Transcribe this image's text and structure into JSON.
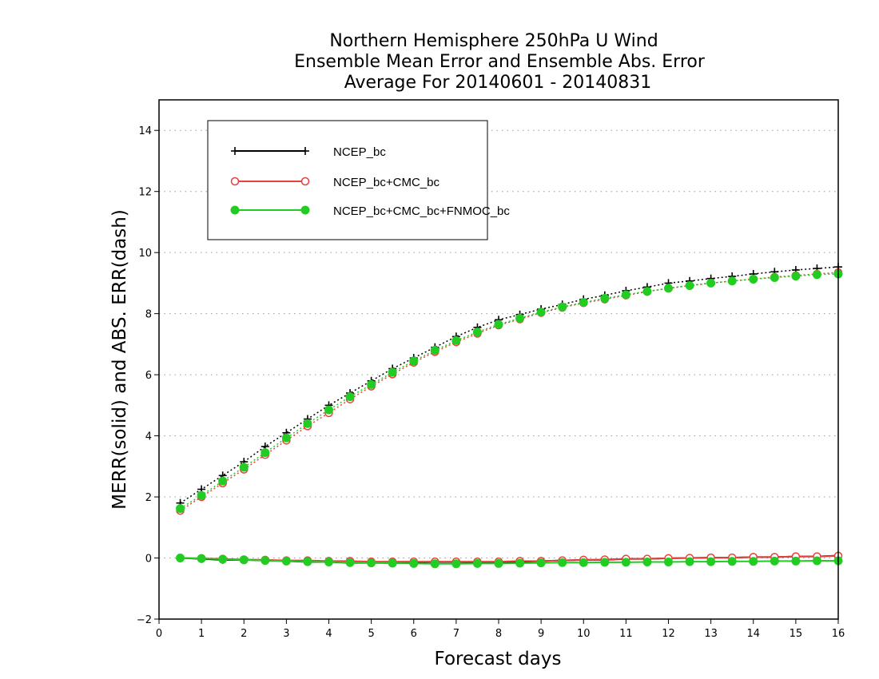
{
  "chart_data": {
    "type": "line",
    "title": [
      "Northern Hemisphere 250hPa U Wind",
      "Ensemble Mean Error and Ensemble Abs. Error",
      "Average For 20140601 - 20140831"
    ],
    "xlabel": "Forecast days",
    "ylabel": "MERR(solid) and ABS. ERR(dash)",
    "xlim": [
      0,
      16
    ],
    "ylim": [
      -2,
      15
    ],
    "x_ticks": [
      0,
      1,
      2,
      3,
      4,
      5,
      6,
      7,
      8,
      9,
      10,
      11,
      12,
      13,
      14,
      15,
      16
    ],
    "y_ticks": [
      -2,
      0,
      2,
      4,
      6,
      8,
      10,
      12,
      14
    ],
    "grid": "horizontal dotted",
    "legend_position": "top-left",
    "x": [
      0.5,
      1,
      1.5,
      2,
      2.5,
      3,
      3.5,
      4,
      4.5,
      5,
      5.5,
      6,
      6.5,
      7,
      7.5,
      8,
      8.5,
      9,
      9.5,
      10,
      10.5,
      11,
      11.5,
      12,
      12.5,
      13,
      13.5,
      14,
      14.5,
      15,
      15.5,
      16
    ],
    "series": [
      {
        "name": "NCEP_bc",
        "color": "#000000",
        "marker": "plus",
        "abs_err": [
          1.8,
          2.25,
          2.7,
          3.15,
          3.65,
          4.1,
          4.55,
          5.0,
          5.4,
          5.8,
          6.2,
          6.55,
          6.9,
          7.25,
          7.55,
          7.8,
          7.97,
          8.15,
          8.3,
          8.47,
          8.6,
          8.75,
          8.87,
          9.0,
          9.07,
          9.15,
          9.22,
          9.3,
          9.37,
          9.43,
          9.48,
          9.53
        ],
        "mean_err": [
          0.0,
          -0.03,
          -0.06,
          -0.06,
          -0.08,
          -0.1,
          -0.13,
          -0.13,
          -0.16,
          -0.16,
          -0.16,
          -0.16,
          -0.18,
          -0.18,
          -0.16,
          -0.13,
          -0.13,
          -0.1,
          -0.08,
          -0.06,
          -0.06,
          -0.03,
          -0.03,
          -0.01,
          0.0,
          0.01,
          0.01,
          0.03,
          0.03,
          0.05,
          0.05,
          0.08
        ]
      },
      {
        "name": "NCEP_bc+CMC_bc",
        "color": "#e8403c",
        "marker": "open-circle",
        "abs_err": [
          1.55,
          2.0,
          2.45,
          2.9,
          3.38,
          3.85,
          4.32,
          4.75,
          5.2,
          5.62,
          6.02,
          6.4,
          6.75,
          7.07,
          7.35,
          7.62,
          7.82,
          8.03,
          8.2,
          8.35,
          8.47,
          8.6,
          8.72,
          8.83,
          8.92,
          9.0,
          9.07,
          9.13,
          9.2,
          9.25,
          9.3,
          9.35
        ],
        "mean_err": [
          0.0,
          -0.01,
          -0.03,
          -0.05,
          -0.06,
          -0.08,
          -0.08,
          -0.1,
          -0.1,
          -0.12,
          -0.12,
          -0.12,
          -0.12,
          -0.12,
          -0.12,
          -0.12,
          -0.1,
          -0.1,
          -0.08,
          -0.06,
          -0.05,
          -0.03,
          -0.03,
          -0.01,
          0.0,
          0.01,
          0.01,
          0.03,
          0.03,
          0.05,
          0.05,
          0.07
        ]
      },
      {
        "name": "NCEP_bc+CMC_bc+FNMOC_bc",
        "color": "#22cc22",
        "marker": "filled-circle",
        "abs_err": [
          1.62,
          2.05,
          2.52,
          2.97,
          3.45,
          3.93,
          4.4,
          4.85,
          5.28,
          5.68,
          6.08,
          6.45,
          6.8,
          7.12,
          7.4,
          7.65,
          7.85,
          8.05,
          8.22,
          8.37,
          8.5,
          8.62,
          8.73,
          8.83,
          8.92,
          9.0,
          9.07,
          9.13,
          9.18,
          9.23,
          9.28,
          9.3
        ],
        "mean_err": [
          0.0,
          -0.02,
          -0.04,
          -0.06,
          -0.08,
          -0.1,
          -0.12,
          -0.13,
          -0.15,
          -0.16,
          -0.17,
          -0.18,
          -0.19,
          -0.19,
          -0.18,
          -0.18,
          -0.17,
          -0.16,
          -0.15,
          -0.15,
          -0.14,
          -0.14,
          -0.13,
          -0.13,
          -0.12,
          -0.12,
          -0.11,
          -0.11,
          -0.1,
          -0.1,
          -0.09,
          -0.09
        ]
      }
    ]
  }
}
